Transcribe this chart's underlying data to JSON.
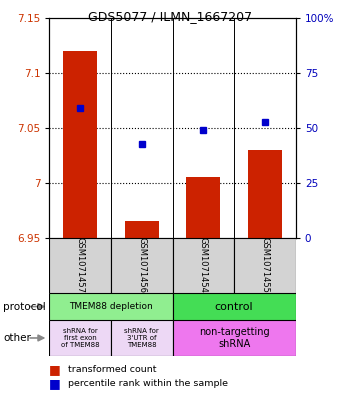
{
  "title": "GDS5077 / ILMN_1667207",
  "samples": [
    "GSM1071457",
    "GSM1071456",
    "GSM1071454",
    "GSM1071455"
  ],
  "red_values": [
    7.12,
    6.965,
    7.005,
    7.03
  ],
  "blue_values": [
    7.068,
    7.035,
    7.048,
    7.055
  ],
  "ylim_left": [
    6.95,
    7.15
  ],
  "ylim_right": [
    0,
    100
  ],
  "yticks_left": [
    6.95,
    7.0,
    7.05,
    7.1,
    7.15
  ],
  "yticks_right": [
    0,
    25,
    50,
    75,
    100
  ],
  "ytick_labels_left": [
    "6.95",
    "7",
    "7.05",
    "7.1",
    "7.15"
  ],
  "ytick_labels_right": [
    "0",
    "25",
    "50",
    "75",
    "100%"
  ],
  "grid_lines": [
    7.0,
    7.05,
    7.1
  ],
  "protocol_bg_left": "#90EE90",
  "protocol_bg_right": "#44DD55",
  "other_bg_left": "#EDD8F5",
  "other_bg_right": "#EE77EE",
  "sample_bg": "#D3D3D3",
  "red_color": "#CC2200",
  "blue_color": "#0000CC",
  "left_label_color": "#CC3300",
  "right_label_color": "#0000BB",
  "bar_bottom": 6.95,
  "x_positions": [
    0.5,
    1.5,
    2.5,
    3.5
  ],
  "dividers": [
    1.0,
    2.0,
    3.0
  ]
}
